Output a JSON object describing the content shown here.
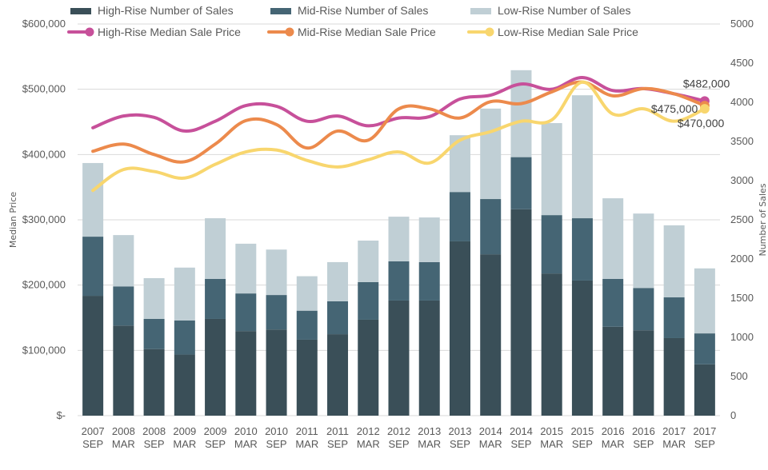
{
  "chart_data": {
    "type": "bar+line",
    "title": "",
    "categories": [
      "2007 SEP",
      "2008 MAR",
      "2008 SEP",
      "2009 MAR",
      "2009 SEP",
      "2010 MAR",
      "2010 SEP",
      "2011 MAR",
      "2011 SEP",
      "2012 MAR",
      "2012 SEP",
      "2013 MAR",
      "2013 SEP",
      "2014 MAR",
      "2014 SEP",
      "2015 MAR",
      "2015 SEP",
      "2016 MAR",
      "2016 SEP",
      "2017 MAR",
      "2017 SEP"
    ],
    "category_labels": [
      [
        "2007",
        "SEP"
      ],
      [
        "2008",
        "MAR"
      ],
      [
        "2008",
        "SEP"
      ],
      [
        "2009",
        "MAR"
      ],
      [
        "2009",
        "SEP"
      ],
      [
        "2010",
        "MAR"
      ],
      [
        "2010",
        "SEP"
      ],
      [
        "2011",
        "MAR"
      ],
      [
        "2011",
        "SEP"
      ],
      [
        "2012",
        "MAR"
      ],
      [
        "2012",
        "SEP"
      ],
      [
        "2013",
        "MAR"
      ],
      [
        "2013",
        "SEP"
      ],
      [
        "2014",
        "MAR"
      ],
      [
        "2014",
        "SEP"
      ],
      [
        "2015",
        "MAR"
      ],
      [
        "2015",
        "SEP"
      ],
      [
        "2016",
        "MAR"
      ],
      [
        "2016",
        "SEP"
      ],
      [
        "2017",
        "MAR"
      ],
      [
        "2017",
        "SEP"
      ]
    ],
    "left_axis": {
      "label": "Median Price",
      "range": [
        0,
        600000
      ],
      "ticks": [
        0,
        100000,
        200000,
        300000,
        400000,
        500000,
        600000
      ],
      "tick_labels": [
        "$-",
        "$100,000",
        "$200,000",
        "$300,000",
        "$400,000",
        "$500,000",
        "$600,000"
      ]
    },
    "right_axis": {
      "label": "Number of Sales",
      "range": [
        0,
        5000
      ],
      "ticks": [
        0,
        500,
        1000,
        1500,
        2000,
        2500,
        3000,
        3500,
        4000,
        4500,
        5000
      ],
      "tick_labels": [
        "0",
        "500",
        "1000",
        "1500",
        "2000",
        "2500",
        "3000",
        "3500",
        "4000",
        "4500",
        "5000"
      ]
    },
    "grid": true,
    "legend_position": "top",
    "bar_series": [
      {
        "name": "High-Rise Number of Sales",
        "color": "#3a4f58",
        "axis": "right",
        "values": [
          1530,
          1150,
          850,
          780,
          1235,
          1080,
          1100,
          970,
          1040,
          1225,
          1470,
          1470,
          2225,
          2060,
          2635,
          1815,
          1725,
          1135,
          1090,
          990,
          655
        ]
      },
      {
        "name": "Mid-Rise Number of Sales",
        "color": "#456574",
        "axis": "right",
        "values": [
          755,
          500,
          385,
          435,
          510,
          480,
          440,
          370,
          420,
          480,
          500,
          490,
          630,
          705,
          665,
          745,
          795,
          610,
          540,
          520,
          395
        ]
      },
      {
        "name": "Low-Rise Number of Sales",
        "color": "#c0cfd5",
        "axis": "right",
        "values": [
          940,
          655,
          520,
          675,
          775,
          635,
          580,
          440,
          500,
          530,
          570,
          570,
          725,
          1155,
          1110,
          1175,
          1570,
          1030,
          950,
          920,
          830
        ]
      }
    ],
    "line_series": [
      {
        "name": "High-Rise Median Sale Price",
        "color": "#c7509a",
        "axis": "left",
        "values": [
          441000,
          459000,
          457000,
          436000,
          451000,
          475000,
          474000,
          451000,
          459000,
          444000,
          456000,
          458000,
          485000,
          491000,
          508000,
          500000,
          518000,
          498000,
          501000,
          493000,
          482000
        ]
      },
      {
        "name": "Mid-Rise Median Sale Price",
        "color": "#ec8a4c",
        "axis": "left",
        "values": [
          405000,
          416000,
          400000,
          389000,
          416000,
          452000,
          446000,
          410000,
          436000,
          422000,
          470000,
          470000,
          456000,
          481000,
          478000,
          496000,
          511000,
          490000,
          501000,
          493000,
          475000
        ]
      },
      {
        "name": "Low-Rise Median Sale Price",
        "color": "#f8d66e",
        "axis": "left",
        "values": [
          345000,
          377000,
          374000,
          364000,
          385000,
          404000,
          407000,
          391000,
          381000,
          392000,
          404000,
          387000,
          422000,
          435000,
          451000,
          453000,
          511000,
          462000,
          470000,
          451000,
          470000
        ]
      }
    ],
    "annotations": [
      {
        "series": "High-Rise Median Sale Price",
        "category": "2017 SEP",
        "text": "$482,000"
      },
      {
        "series": "Mid-Rise Median Sale Price",
        "category": "2017 SEP",
        "text": "$475,000"
      },
      {
        "series": "Low-Rise Median Sale Price",
        "category": "2017 SEP",
        "text": "$470,000"
      }
    ]
  }
}
